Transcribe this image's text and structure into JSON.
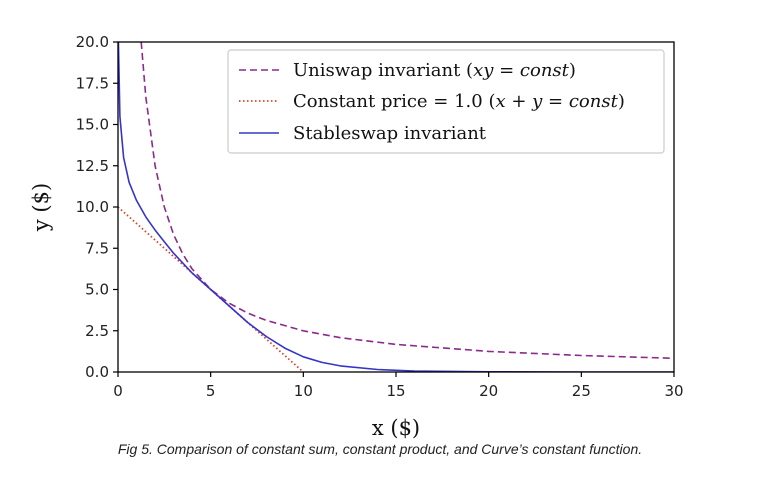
{
  "chart_data": {
    "type": "line",
    "xlabel": "x ($)",
    "ylabel": "y ($)",
    "xlim": [
      0,
      30
    ],
    "ylim": [
      0,
      20
    ],
    "xticks": [
      0,
      5,
      10,
      15,
      20,
      25,
      30
    ],
    "xtick_labels": [
      "0",
      "5",
      "10",
      "15",
      "20",
      "25",
      "30"
    ],
    "yticks": [
      0,
      2.5,
      5,
      7.5,
      10,
      12.5,
      15,
      17.5,
      20
    ],
    "ytick_labels": [
      "0.0",
      "2.5",
      "5.0",
      "7.5",
      "10.0",
      "12.5",
      "15.0",
      "17.5",
      "20.0"
    ],
    "grid": false,
    "legend_position": "top-right",
    "series": [
      {
        "name": "Uniswap invariant (xy = const)",
        "style": "dashed",
        "color": "#8b2a8b",
        "x": [
          1.25,
          1.5,
          2,
          2.5,
          3,
          3.5,
          4,
          5,
          6,
          7,
          8,
          10,
          12,
          15,
          20,
          25,
          30
        ],
        "y": [
          20,
          16.67,
          12.5,
          10,
          8.33,
          7.14,
          6.25,
          5,
          4.17,
          3.57,
          3.13,
          2.5,
          2.08,
          1.67,
          1.25,
          1.0,
          0.83
        ]
      },
      {
        "name": "Constant price = 1.0 (x + y = const)",
        "style": "dotted",
        "color": "#e0402a",
        "x": [
          0,
          10
        ],
        "y": [
          10,
          0
        ]
      },
      {
        "name": "Stableswap invariant",
        "style": "solid",
        "color": "#3535c8",
        "x": [
          0.02,
          0.1,
          0.3,
          0.6,
          1,
          1.5,
          2,
          2.5,
          3,
          4,
          5,
          6,
          7,
          8,
          9,
          10,
          11,
          12,
          14,
          16,
          20,
          25,
          30
        ],
        "y": [
          20,
          15.5,
          13.0,
          11.5,
          10.4,
          9.4,
          8.6,
          7.9,
          7.2,
          6.0,
          5.0,
          4.0,
          3.0,
          2.15,
          1.45,
          0.92,
          0.58,
          0.37,
          0.15,
          0.06,
          0.01,
          0.0,
          0.0
        ]
      }
    ],
    "legend": [
      {
        "pre": "Uniswap invariant (",
        "math": "xy = const",
        "post": ")"
      },
      {
        "pre": "Constant price = 1.0 (",
        "math": "x + y = const",
        "post": ")"
      },
      {
        "pre": "Stableswap invariant",
        "math": "",
        "post": ""
      }
    ]
  },
  "caption": "Fig 5. Comparison of constant sum, constant product, and Curve’s constant function."
}
